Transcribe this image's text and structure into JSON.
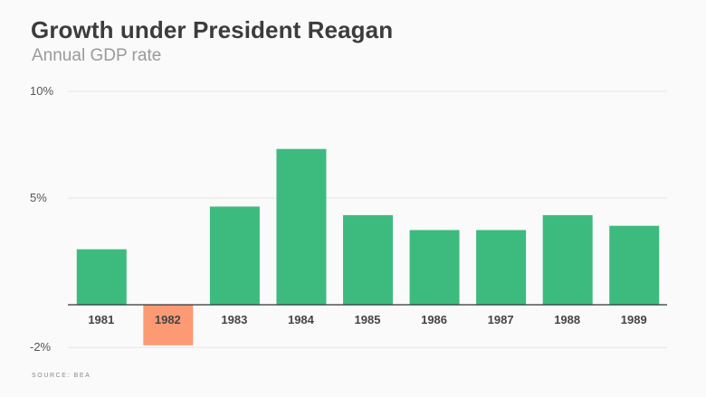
{
  "header": {
    "title": "Growth under President Reagan",
    "subtitle": "Annual GDP rate"
  },
  "footer": {
    "source": "SOURCE: BEA"
  },
  "colors": {
    "positive": "#3dbb7f",
    "negative": "#fc9a74",
    "grid": "#e6e6e6",
    "axis": "#333333"
  },
  "chart_data": {
    "type": "bar",
    "title": "Growth under President Reagan",
    "subtitle": "Annual GDP rate",
    "categories": [
      "1981",
      "1982",
      "1983",
      "1984",
      "1985",
      "1986",
      "1987",
      "1988",
      "1989"
    ],
    "values": [
      2.6,
      -1.9,
      4.6,
      7.3,
      4.2,
      3.5,
      3.5,
      4.2,
      3.7
    ],
    "ylim": [
      -2,
      10
    ],
    "yticks": [
      10,
      5,
      -2
    ],
    "ytick_labels": [
      "10%",
      "5%",
      "-2%"
    ],
    "grid": true,
    "legend": "none"
  }
}
